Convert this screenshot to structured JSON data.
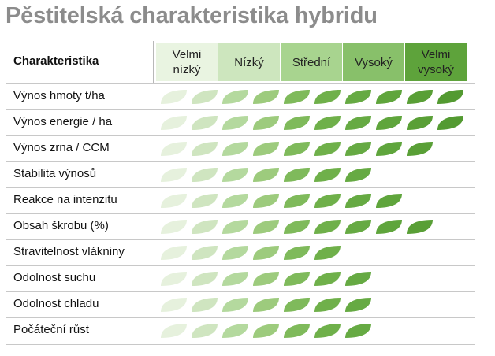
{
  "title": "Pěstitelská charakteristika hybridu",
  "header": {
    "characteristic_label": "Charakteristika",
    "levels": [
      {
        "lines": [
          "Velmi",
          "nízký"
        ],
        "color": "#e9f4e1"
      },
      {
        "lines": [
          "Nízký"
        ],
        "color": "#cde6be"
      },
      {
        "lines": [
          "Střední"
        ],
        "color": "#a8d48f"
      },
      {
        "lines": [
          "Vysoký"
        ],
        "color": "#88c06a"
      },
      {
        "lines": [
          "Velmi",
          "vysoký"
        ],
        "color": "#5ea33b"
      }
    ]
  },
  "leaf_colors": [
    "#e6f1dd",
    "#cfe5c0",
    "#b4d99e",
    "#9dcb7d",
    "#7fba5b",
    "#6fb04a",
    "#66aa43",
    "#5fa53c",
    "#599f36",
    "#539a31"
  ],
  "rows": [
    {
      "label": "Výnos hmoty t/ha",
      "score": 10
    },
    {
      "label": "Výnos energie / ha",
      "score": 10
    },
    {
      "label": "Výnos zrna / CCM",
      "score": 9
    },
    {
      "label": "Stabilita výnosů",
      "score": 7
    },
    {
      "label": "Reakce na intenzitu",
      "score": 8
    },
    {
      "label": "Obsah škrobu (%)",
      "score": 9
    },
    {
      "label": "Stravitelnost vlákniny",
      "score": 6
    },
    {
      "label": "Odolnost suchu",
      "score": 7
    },
    {
      "label": "Odolnost chladu",
      "score": 7
    },
    {
      "label": "Počáteční růst",
      "score": 7
    }
  ]
}
